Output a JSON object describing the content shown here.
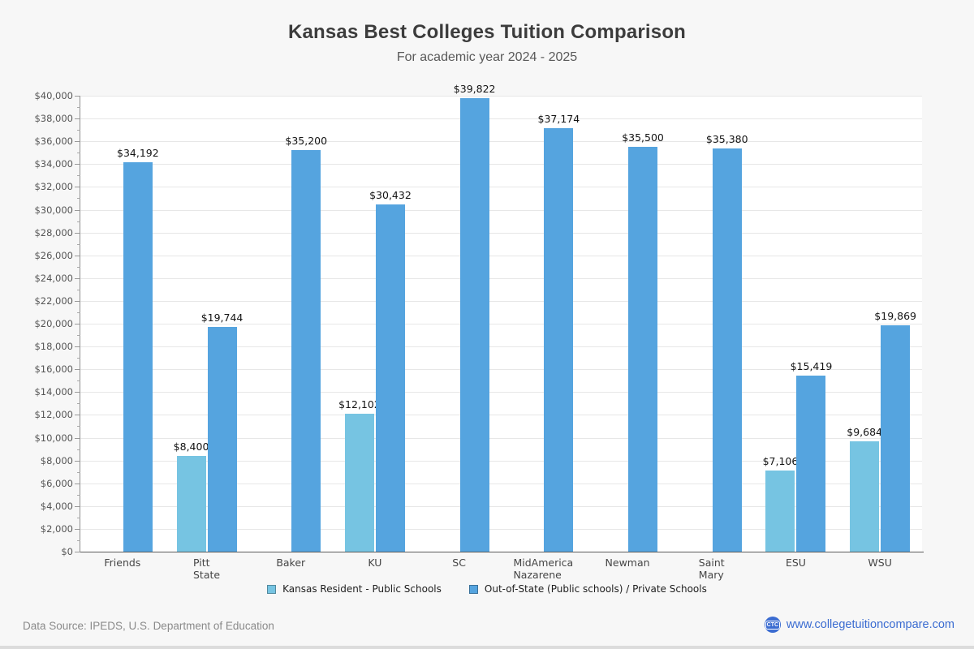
{
  "title": "Kansas Best Colleges Tuition Comparison",
  "subtitle": "For academic year 2024 - 2025",
  "chart_data": {
    "type": "bar",
    "categories": [
      "Friends",
      "Pitt\nState",
      "Baker",
      "KU",
      "SC",
      "MidAmerica\nNazarene",
      "Newman",
      "Saint\nMary",
      "ESU",
      "WSU"
    ],
    "series": [
      {
        "name": "Kansas Resident - Public Schools",
        "color": "#76c4e2",
        "values": [
          null,
          8400,
          null,
          12102,
          null,
          null,
          null,
          null,
          7106,
          9684
        ]
      },
      {
        "name": "Out-of-State (Public schools) / Private Schools",
        "color": "#55a4df",
        "values": [
          34192,
          19744,
          35200,
          30432,
          39822,
          37174,
          35500,
          35380,
          15419,
          19869
        ]
      }
    ],
    "ylabel": "",
    "xlabel": "",
    "ylim": [
      0,
      40000
    ],
    "ytick_step": 2000,
    "ytick_minor_step": 1000,
    "ytick_prefix": "$",
    "grid": true,
    "legend_position": "bottom",
    "value_labels": true
  },
  "footer": {
    "source": "Data Source: IPEDS, U.S. Department of Education",
    "site": "www.collegetuitioncompare.com",
    "logo_text": "CTC"
  },
  "colors": {
    "accent_blue": "#3b6cd1",
    "plot_background": "#ffffff",
    "page_background": "#f7f7f7"
  }
}
